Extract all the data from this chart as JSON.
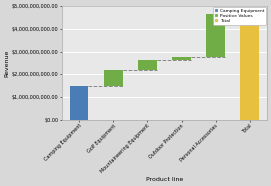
{
  "categories": [
    "Camping Equipment",
    "Golf Equipment",
    "Mountaineering Equipment",
    "Outdoor Protection",
    "Personal Accessories",
    "Total"
  ],
  "bar_bottoms": [
    0,
    1490000000,
    2190000000,
    2640000000,
    2740000000,
    0
  ],
  "bar_heights": [
    1490000000,
    700000000,
    450000000,
    100000000,
    1910000000,
    4650000000
  ],
  "bar_colors": [
    "#4a7db5",
    "#70ad47",
    "#70ad47",
    "#70ad47",
    "#70ad47",
    "#e8c040"
  ],
  "legend_labels": [
    "Camping Equipment",
    "Positive Values",
    "Total"
  ],
  "legend_colors": [
    "#4a7db5",
    "#70ad47",
    "#e8c040"
  ],
  "xlabel": "Product line",
  "ylabel": "Revenue",
  "ylim": [
    0,
    5000000000
  ],
  "yticks": [
    0,
    1000000000,
    2000000000,
    3000000000,
    4000000000,
    5000000000
  ],
  "ytick_labels": [
    "$0.00",
    "$1,000,000,000.00",
    "$2,000,000,000.00",
    "$3,000,000,000.00",
    "$4,000,000,000.00",
    "$5,000,000,000.00"
  ],
  "plot_bg": "#e8e8e8",
  "fig_bg": "#d8d8d8",
  "grid_color": "#ffffff",
  "connector_color": "#888888"
}
